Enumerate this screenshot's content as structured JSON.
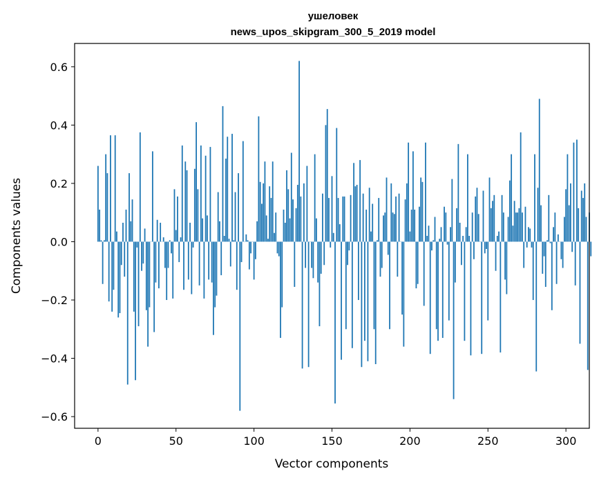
{
  "chart_data": {
    "type": "bar",
    "title": "ушеловек",
    "subtitle": "news_upos_skipgram_300_5_2019 model",
    "xlabel": "Vector components",
    "ylabel": "Components values",
    "xlim": [
      -15,
      315
    ],
    "ylim": [
      -0.64,
      0.68
    ],
    "xticks": [
      0,
      50,
      100,
      150,
      200,
      250,
      300
    ],
    "xtick_labels": [
      "0",
      "50",
      "100",
      "150",
      "200",
      "250",
      "300"
    ],
    "yticks": [
      -0.6,
      -0.4,
      -0.2,
      0.0,
      0.2,
      0.4,
      0.6
    ],
    "ytick_labels": [
      "−0.6",
      "−0.4",
      "−0.2",
      "0.0",
      "0.2",
      "0.4",
      "0.6"
    ],
    "grid": false,
    "bar_color": "#1f77b4",
    "values": [
      0.26,
      0.11,
      0.005,
      -0.145,
      0.005,
      0.3,
      0.235,
      -0.205,
      0.365,
      -0.24,
      -0.165,
      0.365,
      0.035,
      -0.26,
      -0.245,
      -0.08,
      0.065,
      -0.12,
      0.11,
      -0.49,
      0.235,
      0.07,
      0.145,
      -0.24,
      -0.475,
      -0.02,
      -0.29,
      0.375,
      -0.1,
      -0.075,
      0.045,
      -0.235,
      -0.36,
      -0.225,
      0.0,
      0.31,
      -0.31,
      -0.14,
      0.075,
      -0.16,
      0.065,
      0.0,
      0.015,
      -0.09,
      -0.2,
      -0.09,
      0.005,
      -0.04,
      -0.195,
      0.18,
      0.04,
      0.155,
      -0.07,
      0.015,
      0.33,
      -0.165,
      0.275,
      0.245,
      -0.13,
      0.065,
      -0.18,
      -0.02,
      0.25,
      0.41,
      0.18,
      -0.15,
      0.33,
      0.08,
      -0.195,
      0.295,
      0.09,
      -0.13,
      0.325,
      -0.14,
      -0.32,
      -0.225,
      -0.185,
      0.17,
      0.07,
      -0.115,
      0.465,
      0.02,
      0.285,
      0.36,
      0.01,
      -0.085,
      0.37,
      0.005,
      0.17,
      -0.165,
      0.235,
      -0.58,
      -0.07,
      0.345,
      0.0,
      0.025,
      0.005,
      -0.095,
      -0.04,
      0.0,
      -0.13,
      -0.06,
      0.07,
      0.43,
      0.205,
      0.13,
      0.2,
      0.275,
      0.09,
      0.01,
      0.19,
      0.15,
      0.275,
      0.03,
      0.1,
      -0.04,
      -0.05,
      -0.33,
      -0.225,
      0.11,
      0.065,
      0.245,
      0.18,
      0.08,
      0.305,
      0.145,
      -0.155,
      0.115,
      0.195,
      0.62,
      0.155,
      -0.435,
      0.2,
      -0.09,
      0.26,
      -0.43,
      0.0,
      -0.09,
      -0.125,
      0.3,
      0.08,
      -0.14,
      -0.29,
      -0.11,
      0.165,
      -0.08,
      0.4,
      0.455,
      0.15,
      -0.02,
      0.225,
      0.03,
      -0.555,
      0.39,
      0.15,
      0.06,
      -0.405,
      0.155,
      0.155,
      -0.3,
      -0.08,
      -0.03,
      0.16,
      -0.365,
      0.27,
      0.19,
      0.195,
      -0.2,
      0.28,
      -0.43,
      0.165,
      -0.34,
      0.11,
      -0.41,
      0.185,
      0.035,
      0.13,
      -0.3,
      -0.42,
      0.005,
      0.15,
      -0.12,
      -0.09,
      0.09,
      0.1,
      0.22,
      -0.045,
      -0.3,
      0.2,
      0.1,
      0.095,
      0.155,
      -0.12,
      0.165,
      0.0,
      -0.25,
      -0.36,
      0.145,
      0.2,
      0.34,
      0.035,
      0.11,
      0.31,
      0.11,
      -0.16,
      -0.145,
      0.12,
      0.22,
      0.205,
      -0.22,
      0.34,
      0.02,
      0.055,
      -0.385,
      -0.03,
      0.005,
      0.085,
      -0.3,
      -0.34,
      0.01,
      0.05,
      -0.33,
      0.12,
      0.1,
      -0.01,
      -0.27,
      0.05,
      0.215,
      -0.54,
      -0.14,
      0.115,
      0.335,
      0.065,
      -0.08,
      0.02,
      -0.34,
      0.05,
      0.3,
      0.02,
      -0.39,
      0.1,
      -0.06,
      0.155,
      0.185,
      0.095,
      0.0,
      -0.385,
      0.175,
      -0.04,
      -0.025,
      -0.27,
      0.22,
      0.115,
      0.14,
      0.16,
      -0.1,
      0.02,
      0.035,
      -0.38,
      0.16,
      0.1,
      -0.13,
      -0.18,
      0.085,
      0.21,
      0.3,
      0.055,
      0.14,
      0.1,
      0.1,
      0.115,
      0.375,
      0.1,
      -0.09,
      0.12,
      -0.02,
      0.05,
      0.045,
      -0.02,
      -0.2,
      0.3,
      -0.445,
      0.185,
      0.49,
      0.125,
      -0.11,
      -0.05,
      -0.155,
      0.005,
      0.16,
      -0.005,
      -0.235,
      0.05,
      0.1,
      -0.145,
      0.025,
      0.0,
      -0.06,
      -0.09,
      0.085,
      0.18,
      0.3,
      0.125,
      0.2,
      -0.035,
      0.34,
      -0.15,
      0.35,
      0.115,
      -0.35,
      0.175,
      0.15,
      0.2,
      0.085,
      -0.44,
      0.1,
      -0.05
    ]
  }
}
